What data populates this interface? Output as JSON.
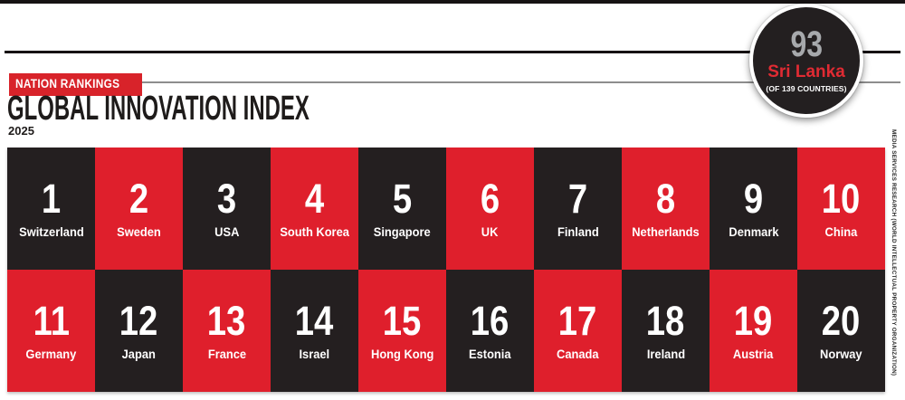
{
  "header": {
    "kicker": "NATION RANKINGS",
    "title": "GLOBAL INNOVATION INDEX",
    "year": "2025"
  },
  "badge": {
    "rank": "93",
    "country": "Sri Lanka",
    "note": "(OF 139 COUNTRIES)"
  },
  "side_caption": "MEDIA SERVICES RESEARCH (WORLD INTELLECTUAL PROPERTY ORGANIZATION)",
  "colors": {
    "tile_red": "#df1f2c",
    "tile_dark": "#241f20",
    "kicker_red": "#d8232a",
    "badge_bg": "#231f20",
    "rank_silver": "#a7a9ac",
    "badge_country_red": "#e02b33"
  },
  "chart_data": {
    "type": "table",
    "title": "GLOBAL INNOVATION INDEX",
    "subtitle": "NATION RANKINGS",
    "year": "2025",
    "columns": [
      "rank",
      "country"
    ],
    "rankings": [
      {
        "rank": "1",
        "country": "Switzerland"
      },
      {
        "rank": "2",
        "country": "Sweden"
      },
      {
        "rank": "3",
        "country": "USA"
      },
      {
        "rank": "4",
        "country": "South Korea"
      },
      {
        "rank": "5",
        "country": "Singapore"
      },
      {
        "rank": "6",
        "country": "UK"
      },
      {
        "rank": "7",
        "country": "Finland"
      },
      {
        "rank": "8",
        "country": "Netherlands"
      },
      {
        "rank": "9",
        "country": "Denmark"
      },
      {
        "rank": "10",
        "country": "China"
      },
      {
        "rank": "11",
        "country": "Germany"
      },
      {
        "rank": "12",
        "country": "Japan"
      },
      {
        "rank": "13",
        "country": "France"
      },
      {
        "rank": "14",
        "country": "Israel"
      },
      {
        "rank": "15",
        "country": "Hong Kong"
      },
      {
        "rank": "16",
        "country": "Estonia"
      },
      {
        "rank": "17",
        "country": "Canada"
      },
      {
        "rank": "18",
        "country": "Ireland"
      },
      {
        "rank": "19",
        "country": "Austria"
      },
      {
        "rank": "20",
        "country": "Norway"
      }
    ],
    "highlight": {
      "rank": "93",
      "country": "Sri Lanka",
      "note": "(OF 139 COUNTRIES)"
    },
    "layout": {
      "grid": "10x2",
      "style": "checkerboard",
      "legend": "none"
    }
  }
}
